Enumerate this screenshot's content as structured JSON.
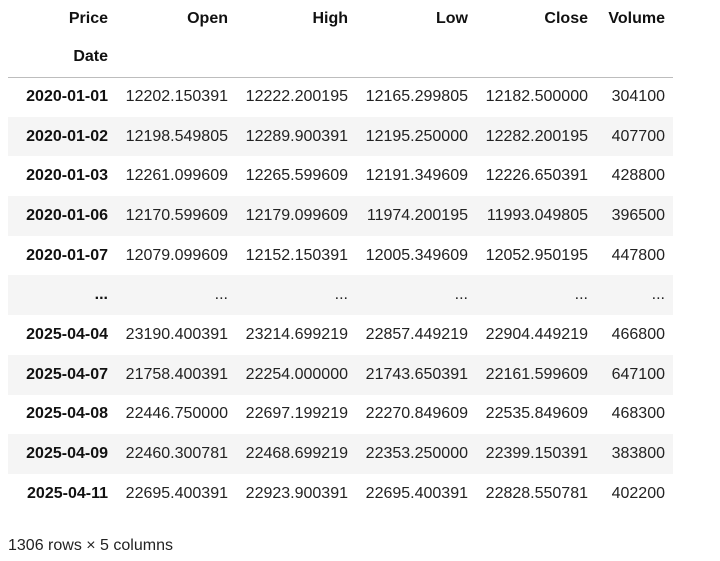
{
  "table": {
    "columns_label": "Price",
    "index_name": "Date",
    "columns": [
      "Open",
      "High",
      "Low",
      "Close",
      "Volume"
    ],
    "rows": [
      {
        "date": "2020-01-01",
        "values": [
          "12202.150391",
          "12222.200195",
          "12165.299805",
          "12182.500000",
          "304100"
        ]
      },
      {
        "date": "2020-01-02",
        "values": [
          "12198.549805",
          "12289.900391",
          "12195.250000",
          "12282.200195",
          "407700"
        ]
      },
      {
        "date": "2020-01-03",
        "values": [
          "12261.099609",
          "12265.599609",
          "12191.349609",
          "12226.650391",
          "428800"
        ]
      },
      {
        "date": "2020-01-06",
        "values": [
          "12170.599609",
          "12179.099609",
          "11974.200195",
          "11993.049805",
          "396500"
        ]
      },
      {
        "date": "2020-01-07",
        "values": [
          "12079.099609",
          "12152.150391",
          "12005.349609",
          "12052.950195",
          "447800"
        ]
      },
      {
        "date": "...",
        "values": [
          "...",
          "...",
          "...",
          "...",
          "..."
        ]
      },
      {
        "date": "2025-04-04",
        "values": [
          "23190.400391",
          "23214.699219",
          "22857.449219",
          "22904.449219",
          "466800"
        ]
      },
      {
        "date": "2025-04-07",
        "values": [
          "21758.400391",
          "22254.000000",
          "21743.650391",
          "22161.599609",
          "647100"
        ]
      },
      {
        "date": "2025-04-08",
        "values": [
          "22446.750000",
          "22697.199219",
          "22270.849609",
          "22535.849609",
          "468300"
        ]
      },
      {
        "date": "2025-04-09",
        "values": [
          "22460.300781",
          "22468.699219",
          "22353.250000",
          "22399.150391",
          "383800"
        ]
      },
      {
        "date": "2025-04-11",
        "values": [
          "22695.400391",
          "22923.900391",
          "22695.400391",
          "22828.550781",
          "402200"
        ]
      }
    ]
  },
  "footer": "1306 rows × 5 columns"
}
